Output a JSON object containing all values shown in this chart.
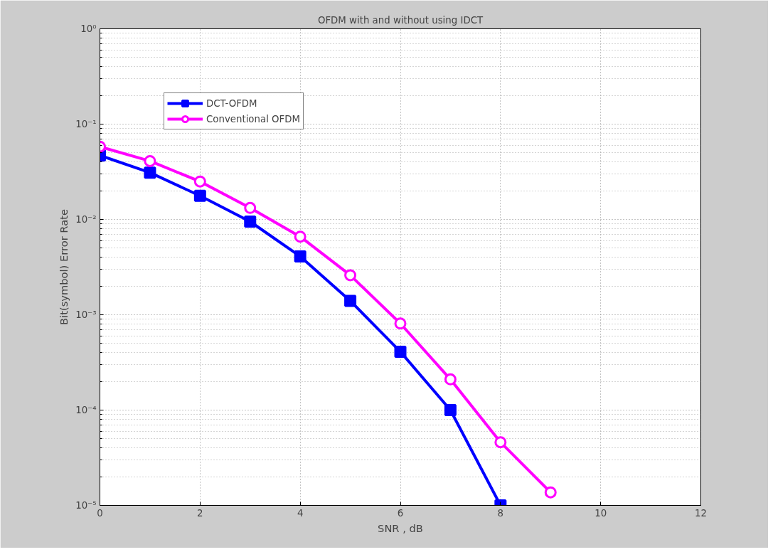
{
  "chart_data": {
    "type": "line",
    "title": "OFDM with and without using IDCT",
    "xlabel": "SNR , dB",
    "ylabel": "Bit(symbol) Error Rate",
    "x": [
      0,
      1,
      2,
      3,
      4,
      5,
      6,
      7,
      8,
      9
    ],
    "series": [
      {
        "name": "DCT-OFDM",
        "color": "#0000ff",
        "marker": "square",
        "values": [
          0.047,
          0.031,
          0.0177,
          0.0095,
          0.0041,
          0.0014,
          0.00041,
          0.0001,
          1e-05,
          null
        ]
      },
      {
        "name": "Conventional OFDM",
        "color": "#ff00ff",
        "marker": "circle",
        "values": [
          0.058,
          0.041,
          0.025,
          0.0132,
          0.0066,
          0.0026,
          0.00081,
          0.00021,
          4.6e-05,
          1.37e-05
        ]
      }
    ],
    "xlim": [
      0,
      12
    ],
    "xticks": [
      0,
      2,
      4,
      6,
      8,
      10,
      12
    ],
    "ylim": [
      1e-05,
      1
    ],
    "yticks": [
      {
        "value": 1e-05,
        "label": "10⁻⁵"
      },
      {
        "value": 0.0001,
        "label": "10⁻⁴"
      },
      {
        "value": 0.001,
        "label": "10⁻³"
      },
      {
        "value": 0.01,
        "label": "10⁻²"
      },
      {
        "value": 0.1,
        "label": "10⁻¹"
      },
      {
        "value": 1,
        "label": "10⁰"
      }
    ],
    "log": "y",
    "grid": true,
    "legend": "top left",
    "line_style": "solid"
  }
}
